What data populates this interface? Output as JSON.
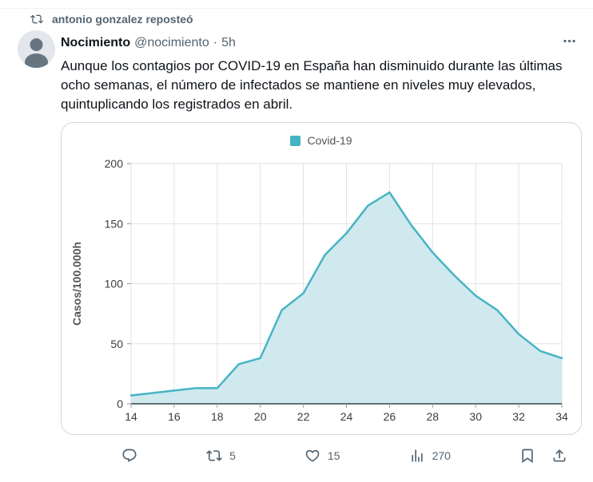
{
  "header": {
    "repost_text": "antonio gonzalez reposteó"
  },
  "tweet": {
    "display_name": "Nocimiento",
    "handle": "@nocimiento",
    "separator": "·",
    "time": "5h",
    "body": "Aunque los contagios por COVID-19 en España han disminuido durante las últimas ocho semanas, el número de infectados se mantiene en niveles muy elevados, quintuplicando los registrados en abril."
  },
  "chart_data": {
    "type": "area",
    "title": "",
    "legend": [
      {
        "label": "Covid-19",
        "color": "#47b4c4"
      }
    ],
    "legend_position": "top-center",
    "x": [
      14,
      15,
      16,
      17,
      18,
      19,
      20,
      21,
      22,
      23,
      24,
      25,
      26,
      27,
      28,
      29,
      30,
      31,
      32,
      33,
      34
    ],
    "series": [
      {
        "name": "Covid-19",
        "values": [
          7,
          9,
          11,
          13,
          13,
          33,
          38,
          78,
          92,
          124,
          142,
          165,
          176,
          149,
          126,
          107,
          90,
          78,
          58,
          44,
          38
        ]
      }
    ],
    "xlabel": "",
    "ylabel": "Casos/100.000h",
    "ylim": [
      0,
      200
    ],
    "yticks": [
      0,
      50,
      100,
      150,
      200
    ],
    "xticks": [
      14,
      16,
      18,
      20,
      22,
      24,
      26,
      28,
      30,
      32,
      34
    ],
    "grid": true,
    "line_color": "#47b4c4",
    "fill_color": "#cfe9ee"
  },
  "actions": {
    "repost_count": "5",
    "like_count": "15",
    "view_count": "270"
  },
  "icons": {
    "repost_header": "retweet-arrows",
    "avatar": "person-silhouette",
    "more": "three-dots",
    "reply": "speech-bubble",
    "repost": "retweet-arrows",
    "like": "heart-outline",
    "views": "bar-chart",
    "bookmark": "bookmark-outline",
    "share": "upload-arrow"
  },
  "colors": {
    "text": "#0f1419",
    "muted": "#536471",
    "card_border": "#cfd9de",
    "grid_line": "#e2e2e2",
    "axis_line": "#37444c",
    "tick_text": "#3c3c3c",
    "accent_teal": "#47b4c4",
    "area_fill": "#cfe9ee"
  }
}
